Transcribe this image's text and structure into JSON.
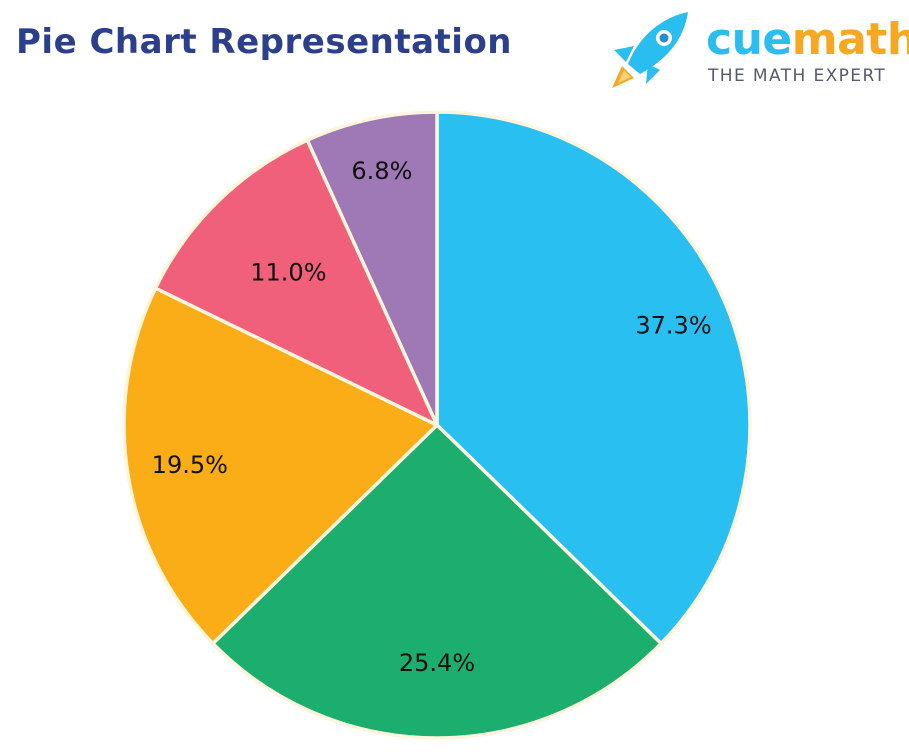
{
  "title": "Pie Chart Representation",
  "brand": {
    "name_part1": "cue",
    "name_part2": "math",
    "tagline": "THE MATH EXPERT",
    "logo_icon": "rocket-icon",
    "colors": {
      "blue": "#29bdf0",
      "orange": "#f7a823",
      "tagline": "#555b6e"
    }
  },
  "colors": {
    "title": "#2b3f8c",
    "slice_border": "#fdf6dc"
  },
  "chart_data": {
    "type": "pie",
    "title": "Pie Chart Representation",
    "start_angle_deg": 0,
    "direction": "clockwise",
    "slices": [
      {
        "value": 37.3,
        "label": "37.3%",
        "color": "#29bff1"
      },
      {
        "value": 25.4,
        "label": "25.4%",
        "color": "#1cae6e"
      },
      {
        "value": 19.5,
        "label": "19.5%",
        "color": "#fbad18"
      },
      {
        "value": 11.0,
        "label": "11.0%",
        "color": "#f0607a"
      },
      {
        "value": 6.8,
        "label": "6.8%",
        "color": "#9e79b5"
      }
    ]
  }
}
